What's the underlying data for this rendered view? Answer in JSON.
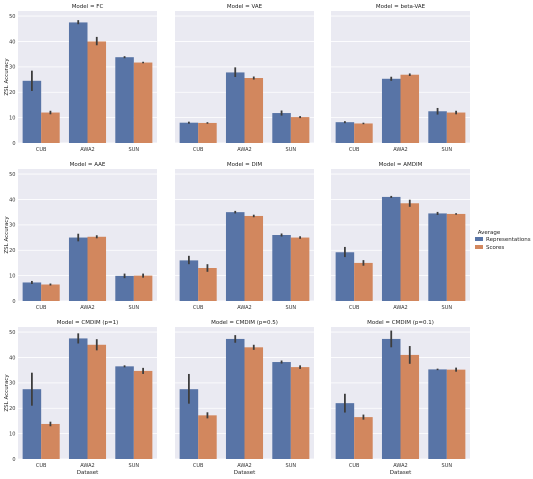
{
  "colors": {
    "Representations": "#5874a6",
    "Scores": "#d2875e",
    "panel_bg": "#eaeaf2",
    "grid": "#ffffff",
    "errorbar": "#3d3d3d"
  },
  "legend": {
    "title": "Average",
    "entries": [
      "Representations",
      "Scores"
    ]
  },
  "chart_data": [
    {
      "type": "bar",
      "title": "Model = FC",
      "categories": [
        "CUB",
        "AWA2",
        "SUN"
      ],
      "ylabel": "ZSL Accuracy",
      "xlabel": "",
      "ylim": [
        0,
        52
      ],
      "yticks": [
        0,
        10,
        20,
        30,
        40,
        50
      ],
      "grid": true,
      "series": [
        {
          "name": "Representations",
          "values": [
            24.5,
            47.5,
            33.8
          ],
          "err": [
            [
              20.5,
              28.5
            ],
            [
              46.8,
              48.4
            ],
            [
              33.4,
              34.2
            ]
          ]
        },
        {
          "name": "Scores",
          "values": [
            12.0,
            40.0,
            31.7
          ],
          "err": [
            [
              11.3,
              12.7
            ],
            [
              38.5,
              41.8
            ],
            [
              31.4,
              32.0
            ]
          ]
        }
      ]
    },
    {
      "type": "bar",
      "title": "Model = VAE",
      "categories": [
        "CUB",
        "AWA2",
        "SUN"
      ],
      "ylabel": "",
      "xlabel": "",
      "ylim": [
        0,
        52
      ],
      "yticks": [
        0,
        10,
        20,
        30,
        40,
        50
      ],
      "grid": true,
      "series": [
        {
          "name": "Representations",
          "values": [
            8.0,
            27.8,
            11.8
          ],
          "err": [
            [
              7.6,
              8.4
            ],
            [
              26.0,
              29.8
            ],
            [
              10.8,
              12.8
            ]
          ]
        },
        {
          "name": "Scores",
          "values": [
            7.9,
            25.6,
            10.2
          ],
          "err": [
            [
              7.6,
              8.2
            ],
            [
              25.0,
              26.2
            ],
            [
              9.8,
              10.6
            ]
          ]
        }
      ]
    },
    {
      "type": "bar",
      "title": "Model = beta-VAE",
      "categories": [
        "CUB",
        "AWA2",
        "SUN"
      ],
      "ylabel": "",
      "xlabel": "",
      "ylim": [
        0,
        52
      ],
      "yticks": [
        0,
        10,
        20,
        30,
        40,
        50
      ],
      "grid": true,
      "series": [
        {
          "name": "Representations",
          "values": [
            8.2,
            25.3,
            12.5
          ],
          "err": [
            [
              7.8,
              8.6
            ],
            [
              24.5,
              26.1
            ],
            [
              11.2,
              13.8
            ]
          ]
        },
        {
          "name": "Scores",
          "values": [
            7.7,
            26.9,
            12.0
          ],
          "err": [
            [
              7.4,
              8.0
            ],
            [
              26.4,
              27.4
            ],
            [
              11.3,
              12.7
            ]
          ]
        }
      ]
    },
    {
      "type": "bar",
      "title": "Model = AAE",
      "categories": [
        "CUB",
        "AWA2",
        "SUN"
      ],
      "ylabel": "ZSL Accuracy",
      "xlabel": "",
      "ylim": [
        0,
        52
      ],
      "yticks": [
        0,
        10,
        20,
        30,
        40,
        50
      ],
      "grid": true,
      "series": [
        {
          "name": "Representations",
          "values": [
            7.3,
            25.0,
            9.9
          ],
          "err": [
            [
              6.7,
              7.9
            ],
            [
              23.5,
              26.5
            ],
            [
              9.0,
              10.8
            ]
          ]
        },
        {
          "name": "Scores",
          "values": [
            6.5,
            25.3,
            10.0
          ],
          "err": [
            [
              6.1,
              6.9
            ],
            [
              24.7,
              25.9
            ],
            [
              9.2,
              10.8
            ]
          ]
        }
      ]
    },
    {
      "type": "bar",
      "title": "Model = DIM",
      "categories": [
        "CUB",
        "AWA2",
        "SUN"
      ],
      "ylabel": "",
      "xlabel": "",
      "ylim": [
        0,
        52
      ],
      "yticks": [
        0,
        10,
        20,
        30,
        40,
        50
      ],
      "grid": true,
      "series": [
        {
          "name": "Representations",
          "values": [
            16.0,
            35.0,
            26.0
          ],
          "err": [
            [
              14.5,
              17.8
            ],
            [
              34.5,
              35.5
            ],
            [
              25.4,
              26.6
            ]
          ]
        },
        {
          "name": "Scores",
          "values": [
            13.0,
            33.5,
            25.0
          ],
          "err": [
            [
              11.5,
              14.5
            ],
            [
              33.0,
              34.0
            ],
            [
              24.5,
              25.5
            ]
          ]
        }
      ]
    },
    {
      "type": "bar",
      "title": "Model = AMDIM",
      "categories": [
        "CUB",
        "AWA2",
        "SUN"
      ],
      "ylabel": "",
      "xlabel": "",
      "ylim": [
        0,
        52
      ],
      "yticks": [
        0,
        10,
        20,
        30,
        40,
        50
      ],
      "grid": true,
      "series": [
        {
          "name": "Representations",
          "values": [
            19.2,
            41.0,
            34.5
          ],
          "err": [
            [
              17.3,
              21.3
            ],
            [
              40.6,
              41.4
            ],
            [
              33.9,
              35.1
            ]
          ]
        },
        {
          "name": "Scores",
          "values": [
            15.0,
            38.5,
            34.3
          ],
          "err": [
            [
              13.9,
              16.1
            ],
            [
              37.1,
              39.9
            ],
            [
              34.0,
              34.6
            ]
          ]
        }
      ]
    },
    {
      "type": "bar",
      "title": "Model = CMDIM (p=1)",
      "categories": [
        "CUB",
        "AWA2",
        "SUN"
      ],
      "ylabel": "ZSL Accuracy",
      "xlabel": "Dataset",
      "ylim": [
        0,
        52
      ],
      "yticks": [
        0,
        10,
        20,
        30,
        40,
        50
      ],
      "grid": true,
      "series": [
        {
          "name": "Representations",
          "values": [
            27.5,
            47.5,
            36.5
          ],
          "err": [
            [
              21.0,
              34.0
            ],
            [
              45.5,
              49.5
            ],
            [
              36.1,
              36.9
            ]
          ]
        },
        {
          "name": "Scores",
          "values": [
            13.8,
            45.0,
            34.7
          ],
          "err": [
            [
              12.9,
              14.7
            ],
            [
              42.8,
              47.2
            ],
            [
              33.5,
              35.9
            ]
          ]
        }
      ]
    },
    {
      "type": "bar",
      "title": "Model = CMDIM (p=0.5)",
      "categories": [
        "CUB",
        "AWA2",
        "SUN"
      ],
      "ylabel": "",
      "xlabel": "Dataset",
      "ylim": [
        0,
        52
      ],
      "yticks": [
        0,
        10,
        20,
        30,
        40,
        50
      ],
      "grid": true,
      "series": [
        {
          "name": "Representations",
          "values": [
            27.5,
            47.3,
            38.2
          ],
          "err": [
            [
              21.8,
              33.5
            ],
            [
              45.8,
              48.8
            ],
            [
              37.6,
              38.8
            ]
          ]
        },
        {
          "name": "Scores",
          "values": [
            17.2,
            44.0,
            36.2
          ],
          "err": [
            [
              16.0,
              18.4
            ],
            [
              43.0,
              45.0
            ],
            [
              35.5,
              36.9
            ]
          ]
        }
      ]
    },
    {
      "type": "bar",
      "title": "Model = CMDIM (p=0.1)",
      "categories": [
        "CUB",
        "AWA2",
        "SUN"
      ],
      "ylabel": "",
      "xlabel": "Dataset",
      "ylim": [
        0,
        52
      ],
      "yticks": [
        0,
        10,
        20,
        30,
        40,
        50
      ],
      "grid": true,
      "series": [
        {
          "name": "Representations",
          "values": [
            22.0,
            47.3,
            35.3
          ],
          "err": [
            [
              18.3,
              25.7
            ],
            [
              44.0,
              50.6
            ],
            [
              35.0,
              35.6
            ]
          ]
        },
        {
          "name": "Scores",
          "values": [
            16.5,
            41.0,
            35.2
          ],
          "err": [
            [
              15.5,
              17.5
            ],
            [
              37.5,
              44.5
            ],
            [
              34.4,
              36.0
            ]
          ]
        }
      ]
    }
  ]
}
